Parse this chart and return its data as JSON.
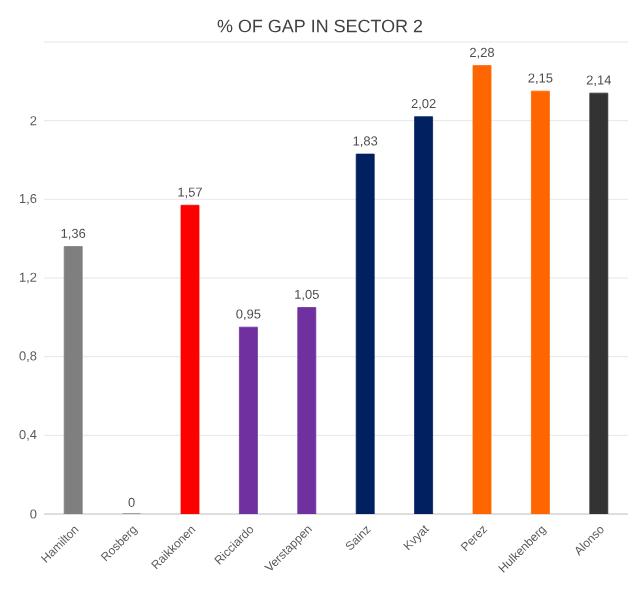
{
  "chart_data": {
    "type": "bar",
    "title": "% OF GAP IN SECTOR 2",
    "categories": [
      "Hamilton",
      "Rosberg",
      "Raikkonen",
      "Ricciardo",
      "Verstappen",
      "Sainz",
      "Kvyat",
      "Perez",
      "Hulkenberg",
      "Alonso"
    ],
    "values": [
      1.36,
      0,
      1.57,
      0.95,
      1.05,
      1.83,
      2.02,
      2.28,
      2.15,
      2.14
    ],
    "value_labels": [
      "1,36",
      "0",
      "1,57",
      "0,95",
      "1,05",
      "1,83",
      "2,02",
      "2,28",
      "2,15",
      "2,14"
    ],
    "colors": [
      "#7f7f7f",
      "#7f7f7f",
      "#ff0000",
      "#7030a0",
      "#7030a0",
      "#002060",
      "#002060",
      "#ff6600",
      "#ff6600",
      "#333333"
    ],
    "ylim": [
      0,
      2.4
    ],
    "yticks": [
      0,
      {
        "value": 0.4,
        "label": "0,4"
      },
      {
        "value": 0.8,
        "label": "0,8"
      },
      {
        "value": 1.2,
        "label": "1,2"
      },
      {
        "value": 1.6,
        "label": "1,6"
      },
      2,
      {
        "value": 2.4,
        "label": null
      }
    ],
    "grid": "y"
  }
}
